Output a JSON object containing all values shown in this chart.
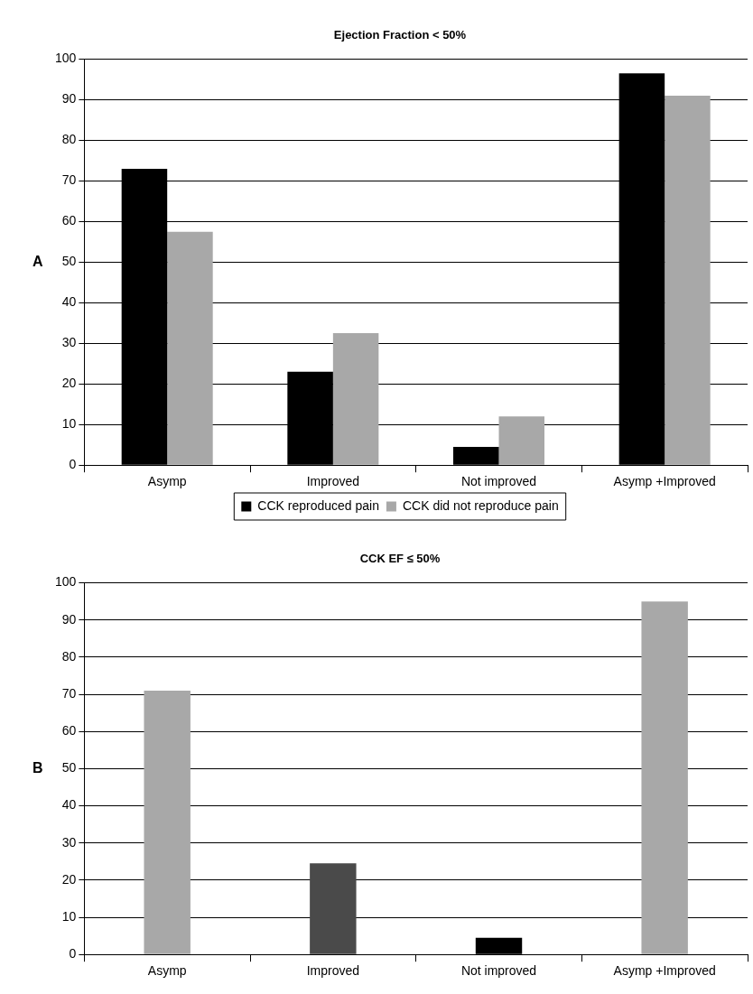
{
  "chart_data": [
    {
      "type": "bar",
      "title": "Ejection Fraction < 50%",
      "categories": [
        "Asymp",
        "Improved",
        "Not improved",
        "Asymp +Improved"
      ],
      "series": [
        {
          "name": "CCK reproduced pain",
          "color": "#000000",
          "values": [
            73,
            23,
            4.5,
            96.5
          ]
        },
        {
          "name": "CCK did not reproduce pain",
          "color": "#a8a8a8",
          "values": [
            57.5,
            32.5,
            12,
            91
          ]
        }
      ],
      "ylim": [
        0,
        100
      ],
      "yticks": [
        0,
        10,
        20,
        30,
        40,
        50,
        60,
        70,
        80,
        90,
        100
      ],
      "grid": "y",
      "legend": "bottom",
      "annotations": [
        "A"
      ]
    },
    {
      "type": "bar",
      "title": "CCK EF ≤ 50%",
      "categories": [
        "Asymp",
        "Improved",
        "Not improved",
        "Asymp +Improved"
      ],
      "series": [
        {
          "colors": [
            "#a8a8a8",
            "#4a4a4a",
            "#000000",
            "#a8a8a8"
          ],
          "values": [
            71,
            24.5,
            4.5,
            95
          ]
        }
      ],
      "ylim": [
        0,
        100
      ],
      "yticks": [
        0,
        10,
        20,
        30,
        40,
        50,
        60,
        70,
        80,
        90,
        100
      ],
      "grid": "y",
      "annotations": [
        "B"
      ]
    }
  ]
}
